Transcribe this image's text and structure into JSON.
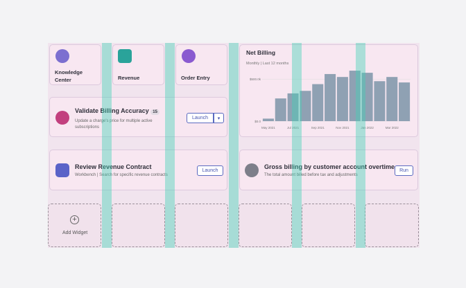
{
  "widgets": {
    "knowledge": {
      "label": "Knowledge Center"
    },
    "revenue": {
      "label": "Revenue"
    },
    "order": {
      "label": "Order Entry"
    },
    "validate": {
      "title": "Validate Billing Accuracy",
      "badge": "15",
      "description": "Update a charge's price for multiple active subscriptions",
      "button": "Launch"
    },
    "review": {
      "title": "Review Revenue Contract",
      "description": "Workbench | Search for specific revenue contracts",
      "button": "Launch"
    },
    "gross": {
      "title": "Gross billing by customer account overtime",
      "description": "The total amount billed before tax and adjustments",
      "button": "Run"
    },
    "add": {
      "label": "Add Widget"
    }
  },
  "chart_data": {
    "type": "bar",
    "title": "Net Billing",
    "subtitle": "Monthly | Last 12 months",
    "categories": [
      "May 2021",
      null,
      "Jul 2021",
      null,
      "Sep 2021",
      null,
      "Nov 2021",
      null,
      "Jan 2022",
      null,
      "Mar 2022",
      null
    ],
    "values": [
      30000,
      270000,
      330000,
      360000,
      440000,
      560000,
      525000,
      600000,
      575000,
      475000,
      525000,
      460000
    ],
    "color": "#8fa1b3",
    "ylim": [
      0,
      650000
    ],
    "yticks": [
      {
        "value": 0,
        "label": "$0.0"
      },
      {
        "value": 500000,
        "label": "$500.0k"
      }
    ],
    "grid": true
  }
}
